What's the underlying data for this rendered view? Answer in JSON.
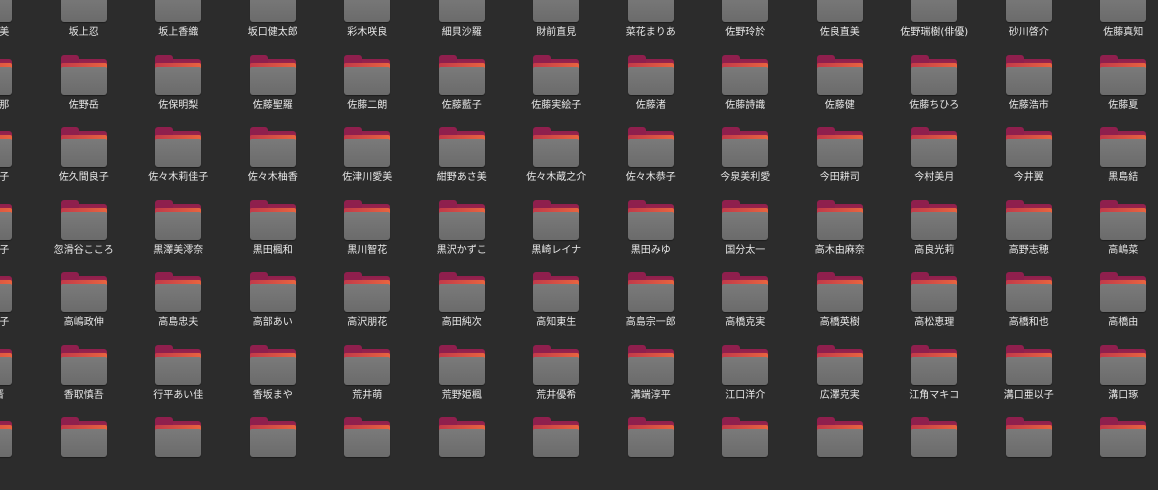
{
  "colors": {
    "background": "#2c2c2c",
    "folder_body": "#707070",
    "folder_top": "#8f1f4d",
    "folder_edge": "#e8643f",
    "label": "#e8e8e8"
  },
  "icon": "folder-icon",
  "folders": [
    "ノ上朝美",
    "坂上忍",
    "坂上香織",
    "坂口健太郎",
    "彩木咲良",
    "細貝沙羅",
    "財前直見",
    "菜花まりあ",
    "佐野玲於",
    "佐良直美",
    "佐野瑞樹(俳優)",
    "砂川啓介",
    "佐藤真知",
    "佐藤梨那",
    "佐野岳",
    "佐保明梨",
    "佐藤聖羅",
    "佐藤二朗",
    "佐藤藍子",
    "佐藤実絵子",
    "佐藤渚",
    "佐藤詩識",
    "佐藤健",
    "佐藤ちひろ",
    "佐藤浩市",
    "佐藤夏",
    "々木明子",
    "佐久間良子",
    "佐々木莉佳子",
    "佐々木柚香",
    "佐津川愛美",
    "紺野あさ美",
    "佐々木蔵之介",
    "佐々木恭子",
    "今泉美利愛",
    "今田耕司",
    "今村美月",
    "今井翼",
    "黒島結",
    "黒柳徹子",
    "忽滑谷こころ",
    "黒澤美澪奈",
    "黒田楓和",
    "黒川智花",
    "黒沢かずこ",
    "黒崎レイナ",
    "黒田みゆ",
    "国分太一",
    "高木由麻奈",
    "高良光莉",
    "高野志穂",
    "高嶋菜",
    "畑百合子",
    "高嶋政伸",
    "高島忠夫",
    "高部あい",
    "高沢朋花",
    "高田純次",
    "高知東生",
    "高島宗一郎",
    "高橋克実",
    "高橋英樹",
    "高松恵理",
    "高橋和也",
    "高橋由",
    "香田晋",
    "香取慎吾",
    "行平あい佳",
    "香坂まや",
    "荒井萌",
    "荒野姫楓",
    "荒井優希",
    "溝端淳平",
    "江口洋介",
    "広澤克実",
    "江角マキコ",
    "溝口亜以子",
    "溝口琢",
    "",
    "",
    "",
    "",
    "",
    "",
    "",
    "",
    "",
    "",
    "",
    "",
    ""
  ]
}
